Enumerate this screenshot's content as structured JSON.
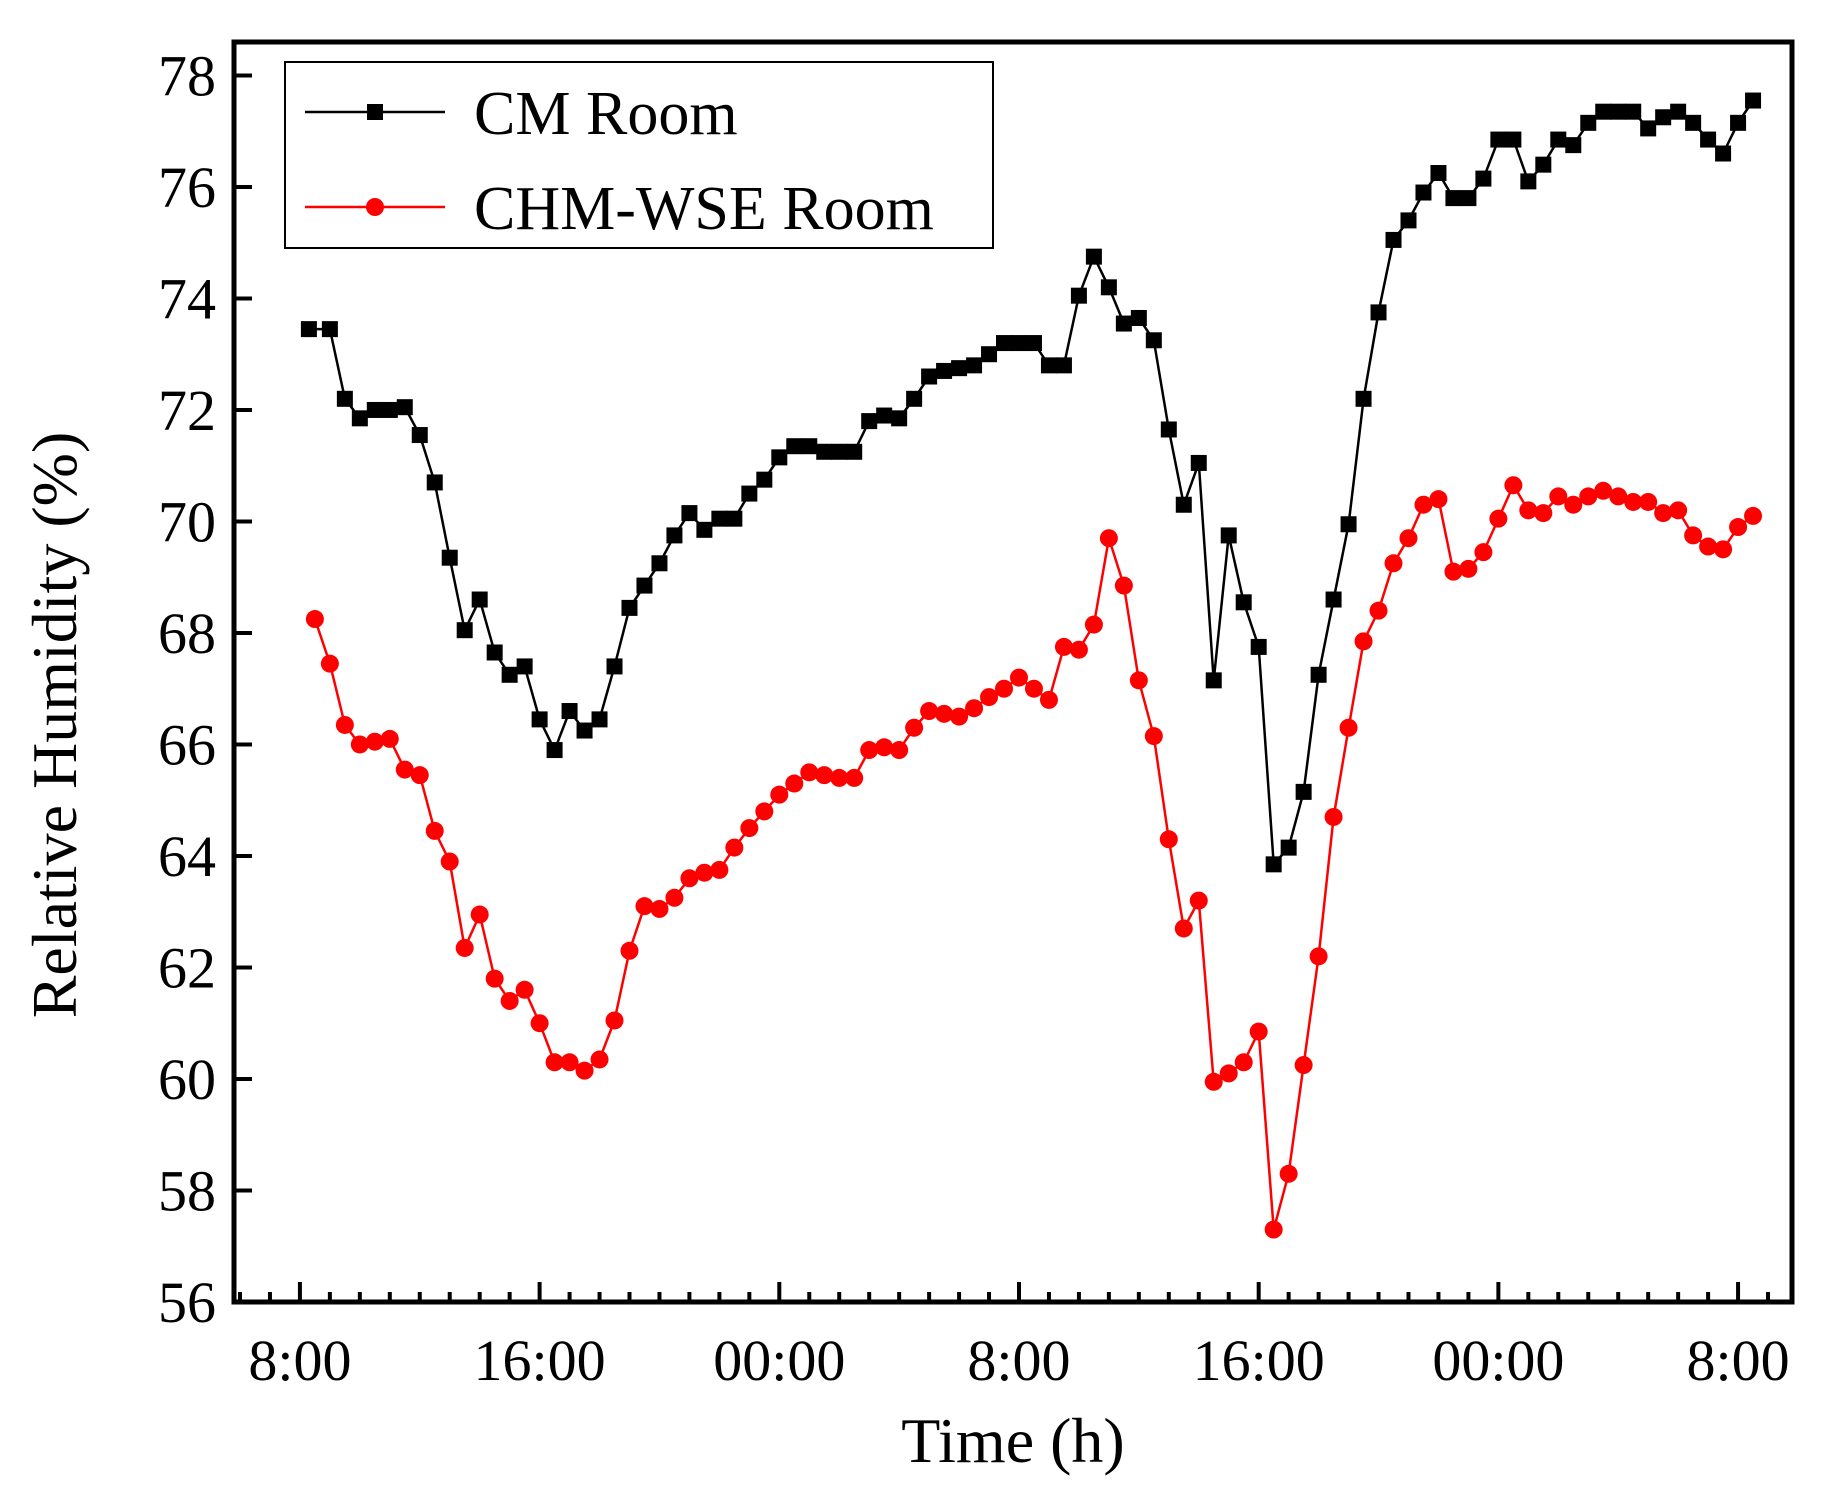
{
  "chart_data": {
    "type": "line",
    "title": "",
    "xlabel": "Time (h)",
    "ylabel": "Relative Humidity (%)",
    "ylim": [
      56,
      78.6
    ],
    "yticks": [
      56,
      58,
      60,
      62,
      64,
      66,
      68,
      70,
      72,
      74,
      76,
      78
    ],
    "xlim": [
      -1.1,
      24.9
    ],
    "xticks": [
      {
        "x": 0,
        "label": "8:00"
      },
      {
        "x": 4,
        "label": "16:00"
      },
      {
        "x": 8,
        "label": "00:00"
      },
      {
        "x": 12,
        "label": "8:00"
      },
      {
        "x": 16,
        "label": "16:00"
      },
      {
        "x": 20,
        "label": "00:00"
      },
      {
        "x": 24,
        "label": "8:00"
      }
    ],
    "minor_tick_step": 0.5,
    "legend_position": "top-left",
    "series": [
      {
        "name": "CM Room",
        "color": "#000000",
        "marker": "square",
        "x": [
          0.15,
          0.5,
          0.75,
          1.0,
          1.25,
          1.5,
          1.75,
          2.0,
          2.25,
          2.5,
          2.75,
          3.0,
          3.25,
          3.5,
          3.75,
          4.0,
          4.25,
          4.5,
          4.75,
          5.0,
          5.25,
          5.5,
          5.75,
          6.0,
          6.25,
          6.5,
          6.75,
          7.0,
          7.25,
          7.5,
          7.75,
          8.0,
          8.25,
          8.5,
          8.75,
          9.0,
          9.25,
          9.5,
          9.75,
          10.0,
          10.25,
          10.5,
          10.75,
          11.0,
          11.25,
          11.5,
          11.75,
          12.0,
          12.25,
          12.5,
          12.75,
          13.0,
          13.25,
          13.5,
          13.75,
          14.0,
          14.25,
          14.5,
          14.75,
          15.0,
          15.25,
          15.5,
          15.75,
          16.0,
          16.25,
          16.5,
          16.75,
          17.0,
          17.25,
          17.5,
          17.75,
          18.0,
          18.25,
          18.5,
          18.75,
          19.0,
          19.25,
          19.5,
          19.75,
          20.0,
          20.25,
          20.5,
          20.75,
          21.0,
          21.25,
          21.5,
          21.75,
          22.0,
          22.25,
          22.5,
          22.75,
          23.0,
          23.25,
          23.5,
          23.75,
          24.0,
          24.25
        ],
        "values": [
          73.45,
          73.45,
          72.2,
          71.85,
          72.0,
          72.0,
          72.05,
          71.55,
          70.7,
          69.35,
          68.05,
          68.6,
          67.65,
          67.25,
          67.4,
          66.45,
          65.9,
          66.6,
          66.25,
          66.45,
          67.4,
          68.45,
          68.85,
          69.25,
          69.75,
          70.15,
          69.85,
          70.05,
          70.05,
          70.5,
          70.75,
          71.15,
          71.35,
          71.35,
          71.25,
          71.25,
          71.25,
          71.8,
          71.9,
          71.85,
          72.2,
          72.6,
          72.7,
          72.75,
          72.8,
          73.0,
          73.2,
          73.2,
          73.2,
          72.8,
          72.8,
          74.05,
          74.75,
          74.2,
          73.55,
          73.65,
          73.25,
          71.65,
          70.3,
          71.05,
          67.15,
          69.75,
          68.55,
          67.75,
          63.85,
          64.15,
          65.15,
          67.25,
          68.6,
          69.95,
          72.2,
          73.75,
          75.05,
          75.4,
          75.9,
          76.25,
          75.8,
          75.8,
          76.15,
          76.85,
          76.85,
          76.1,
          76.4,
          76.85,
          76.75,
          77.15,
          77.35,
          77.35,
          77.35,
          77.05,
          77.25,
          77.35,
          77.15,
          76.85,
          76.6,
          77.15,
          77.55
        ]
      },
      {
        "name": "CHM-WSE Room",
        "color": "#ff0000",
        "marker": "circle",
        "x": [
          0.25,
          0.5,
          0.75,
          1.0,
          1.25,
          1.5,
          1.75,
          2.0,
          2.25,
          2.5,
          2.75,
          3.0,
          3.25,
          3.5,
          3.75,
          4.0,
          4.25,
          4.5,
          4.75,
          5.0,
          5.25,
          5.5,
          5.75,
          6.0,
          6.25,
          6.5,
          6.75,
          7.0,
          7.25,
          7.5,
          7.75,
          8.0,
          8.25,
          8.5,
          8.75,
          9.0,
          9.25,
          9.5,
          9.75,
          10.0,
          10.25,
          10.5,
          10.75,
          11.0,
          11.25,
          11.5,
          11.75,
          12.0,
          12.25,
          12.5,
          12.75,
          13.0,
          13.25,
          13.5,
          13.75,
          14.0,
          14.25,
          14.5,
          14.75,
          15.0,
          15.25,
          15.5,
          15.75,
          16.0,
          16.25,
          16.5,
          16.75,
          17.0,
          17.25,
          17.5,
          17.75,
          18.0,
          18.25,
          18.5,
          18.75,
          19.0,
          19.25,
          19.5,
          19.75,
          20.0,
          20.25,
          20.5,
          20.75,
          21.0,
          21.25,
          21.5,
          21.75,
          22.0,
          22.25,
          22.5,
          22.75,
          23.0,
          23.25,
          23.5,
          23.75,
          24.0,
          24.25
        ],
        "values": [
          68.25,
          67.45,
          66.35,
          66.0,
          66.05,
          66.1,
          65.55,
          65.45,
          64.45,
          63.9,
          62.35,
          62.95,
          61.8,
          61.4,
          61.6,
          61.0,
          60.3,
          60.3,
          60.15,
          60.35,
          61.05,
          62.3,
          63.1,
          63.05,
          63.25,
          63.6,
          63.7,
          63.75,
          64.15,
          64.5,
          64.8,
          65.1,
          65.3,
          65.5,
          65.45,
          65.4,
          65.4,
          65.9,
          65.95,
          65.9,
          66.3,
          66.6,
          66.55,
          66.5,
          66.65,
          66.85,
          67.0,
          67.2,
          67.0,
          66.8,
          67.75,
          67.7,
          68.15,
          69.7,
          68.85,
          67.15,
          66.15,
          64.3,
          62.7,
          63.2,
          59.95,
          60.1,
          60.3,
          60.85,
          57.3,
          58.3,
          60.25,
          62.2,
          64.7,
          66.3,
          67.85,
          68.4,
          69.25,
          69.7,
          70.3,
          70.4,
          69.1,
          69.15,
          69.45,
          70.05,
          70.65,
          70.2,
          70.15,
          70.45,
          70.3,
          70.45,
          70.55,
          70.45,
          70.35,
          70.35,
          70.15,
          70.2,
          69.75,
          69.55,
          69.5,
          69.9,
          70.1
        ]
      }
    ]
  }
}
